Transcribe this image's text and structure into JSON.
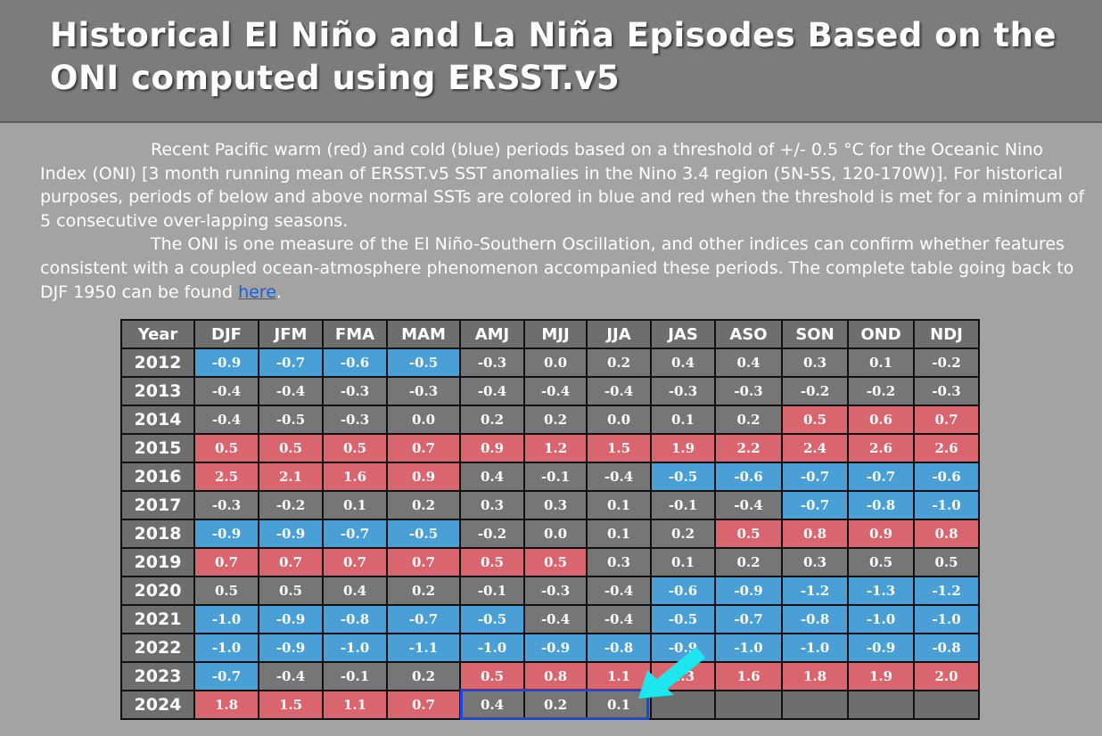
{
  "header": {
    "title_line1": "Historical El Niño and La Niña Episodes Based on the",
    "title_line2": "ONI computed using ERSST.v5"
  },
  "intro": {
    "p1": "Recent Pacific warm (red) and cold (blue) periods based on a threshold of +/- 0.5 °C for the Oceanic Nino Index (ONI) [3 month running mean of ERSST.v5 SST anomalies in the Nino 3.4 region (5N-5S, 120-170W)]. For historical purposes, periods of below and above normal SSTs are colored in blue and red when the threshold is met for a minimum of 5 consecutive over-lapping seasons.",
    "p2": "The ONI is one measure of the El Niño-Southern Oscillation, and other indices can confirm whether features consistent with a coupled ocean-atmosphere phenomenon accompanied these periods. The complete table going back to DJF 1950 can be found ",
    "link_label": "here",
    "p2_end": "."
  },
  "colors": {
    "warm": "#d9656f",
    "cold": "#4a9fd6",
    "neutral": "#767676",
    "highlight": "#1349e6",
    "arrow": "#1ee6ee"
  },
  "table": {
    "columns": [
      "Year",
      "DJF",
      "JFM",
      "FMA",
      "MAM",
      "AMJ",
      "MJJ",
      "JJA",
      "JAS",
      "ASO",
      "SON",
      "OND",
      "NDJ"
    ],
    "rows": [
      {
        "year": "2012",
        "values": [
          "-0.9",
          "-0.7",
          "-0.6",
          "-0.5",
          "-0.3",
          "0.0",
          "0.2",
          "0.4",
          "0.4",
          "0.3",
          "0.1",
          "-0.2"
        ],
        "status": [
          "c",
          "c",
          "c",
          "c",
          "n",
          "n",
          "n",
          "n",
          "n",
          "n",
          "n",
          "n"
        ]
      },
      {
        "year": "2013",
        "values": [
          "-0.4",
          "-0.4",
          "-0.3",
          "-0.3",
          "-0.4",
          "-0.4",
          "-0.4",
          "-0.3",
          "-0.3",
          "-0.2",
          "-0.2",
          "-0.3"
        ],
        "status": [
          "n",
          "n",
          "n",
          "n",
          "n",
          "n",
          "n",
          "n",
          "n",
          "n",
          "n",
          "n"
        ]
      },
      {
        "year": "2014",
        "values": [
          "-0.4",
          "-0.5",
          "-0.3",
          "0.0",
          "0.2",
          "0.2",
          "0.0",
          "0.1",
          "0.2",
          "0.5",
          "0.6",
          "0.7"
        ],
        "status": [
          "n",
          "n",
          "n",
          "n",
          "n",
          "n",
          "n",
          "n",
          "n",
          "w",
          "w",
          "w"
        ]
      },
      {
        "year": "2015",
        "values": [
          "0.5",
          "0.5",
          "0.5",
          "0.7",
          "0.9",
          "1.2",
          "1.5",
          "1.9",
          "2.2",
          "2.4",
          "2.6",
          "2.6"
        ],
        "status": [
          "w",
          "w",
          "w",
          "w",
          "w",
          "w",
          "w",
          "w",
          "w",
          "w",
          "w",
          "w"
        ]
      },
      {
        "year": "2016",
        "values": [
          "2.5",
          "2.1",
          "1.6",
          "0.9",
          "0.4",
          "-0.1",
          "-0.4",
          "-0.5",
          "-0.6",
          "-0.7",
          "-0.7",
          "-0.6"
        ],
        "status": [
          "w",
          "w",
          "w",
          "w",
          "n",
          "n",
          "n",
          "c",
          "c",
          "c",
          "c",
          "c"
        ]
      },
      {
        "year": "2017",
        "values": [
          "-0.3",
          "-0.2",
          "0.1",
          "0.2",
          "0.3",
          "0.3",
          "0.1",
          "-0.1",
          "-0.4",
          "-0.7",
          "-0.8",
          "-1.0"
        ],
        "status": [
          "n",
          "n",
          "n",
          "n",
          "n",
          "n",
          "n",
          "n",
          "n",
          "c",
          "c",
          "c"
        ]
      },
      {
        "year": "2018",
        "values": [
          "-0.9",
          "-0.9",
          "-0.7",
          "-0.5",
          "-0.2",
          "0.0",
          "0.1",
          "0.2",
          "0.5",
          "0.8",
          "0.9",
          "0.8"
        ],
        "status": [
          "c",
          "c",
          "c",
          "c",
          "n",
          "n",
          "n",
          "n",
          "w",
          "w",
          "w",
          "w"
        ]
      },
      {
        "year": "2019",
        "values": [
          "0.7",
          "0.7",
          "0.7",
          "0.7",
          "0.5",
          "0.5",
          "0.3",
          "0.1",
          "0.2",
          "0.3",
          "0.5",
          "0.5"
        ],
        "status": [
          "w",
          "w",
          "w",
          "w",
          "w",
          "w",
          "n",
          "n",
          "n",
          "n",
          "n",
          "n"
        ]
      },
      {
        "year": "2020",
        "values": [
          "0.5",
          "0.5",
          "0.4",
          "0.2",
          "-0.1",
          "-0.3",
          "-0.4",
          "-0.6",
          "-0.9",
          "-1.2",
          "-1.3",
          "-1.2"
        ],
        "status": [
          "n",
          "n",
          "n",
          "n",
          "n",
          "n",
          "n",
          "c",
          "c",
          "c",
          "c",
          "c"
        ]
      },
      {
        "year": "2021",
        "values": [
          "-1.0",
          "-0.9",
          "-0.8",
          "-0.7",
          "-0.5",
          "-0.4",
          "-0.4",
          "-0.5",
          "-0.7",
          "-0.8",
          "-1.0",
          "-1.0"
        ],
        "status": [
          "c",
          "c",
          "c",
          "c",
          "c",
          "n",
          "n",
          "c",
          "c",
          "c",
          "c",
          "c"
        ]
      },
      {
        "year": "2022",
        "values": [
          "-1.0",
          "-0.9",
          "-1.0",
          "-1.1",
          "-1.0",
          "-0.9",
          "-0.8",
          "-0.9",
          "-1.0",
          "-1.0",
          "-0.9",
          "-0.8"
        ],
        "status": [
          "c",
          "c",
          "c",
          "c",
          "c",
          "c",
          "c",
          "c",
          "c",
          "c",
          "c",
          "c"
        ]
      },
      {
        "year": "2023",
        "values": [
          "-0.7",
          "-0.4",
          "-0.1",
          "0.2",
          "0.5",
          "0.8",
          "1.1",
          "1.3",
          "1.6",
          "1.8",
          "1.9",
          "2.0"
        ],
        "status": [
          "c",
          "n",
          "n",
          "n",
          "w",
          "w",
          "w",
          "w",
          "w",
          "w",
          "w",
          "w"
        ]
      },
      {
        "year": "2024",
        "values": [
          "1.8",
          "1.5",
          "1.1",
          "0.7",
          "0.4",
          "0.2",
          "0.1",
          "",
          "",
          "",
          "",
          ""
        ],
        "status": [
          "w",
          "w",
          "w",
          "w",
          "n",
          "n",
          "n",
          "e",
          "e",
          "e",
          "e",
          "e"
        ]
      }
    ]
  }
}
